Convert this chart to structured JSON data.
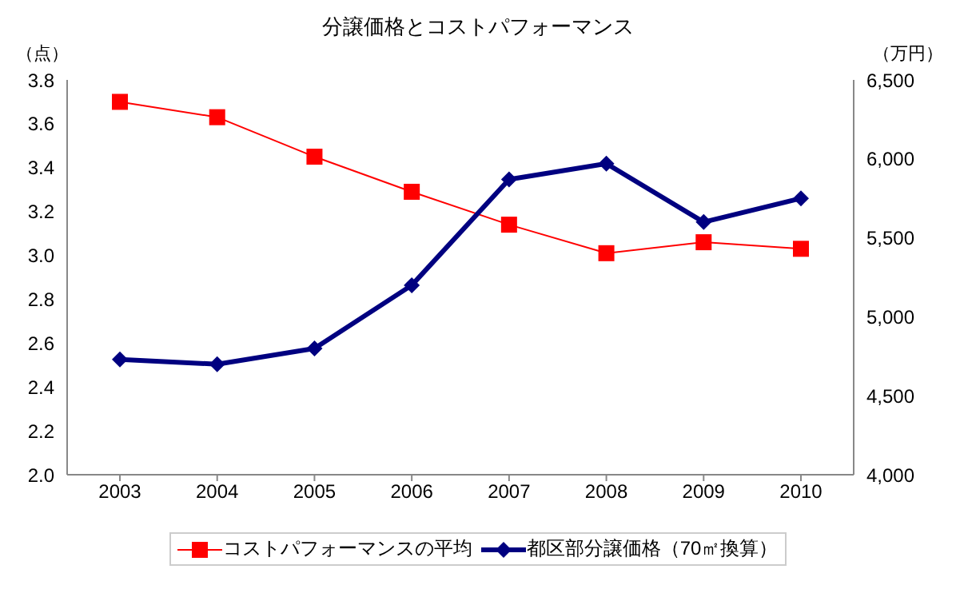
{
  "chart_data": {
    "type": "line",
    "title": "分譲価格とコストパフォーマンス",
    "ylabel": "（点）",
    "y2label": "（万円）",
    "categories": [
      "2003",
      "2004",
      "2005",
      "2006",
      "2007",
      "2008",
      "2009",
      "2010"
    ],
    "series": [
      {
        "name": "コストパフォーマンスの平均",
        "color": "#ff0000",
        "marker": "square",
        "values": [
          3.7,
          3.63,
          3.45,
          3.29,
          3.14,
          3.01,
          3.06,
          3.03
        ]
      },
      {
        "name": "都区部分譲価格（70㎡換算）",
        "color": "#000080",
        "marker": "diamond",
        "axis": "y2",
        "values": [
          4730,
          4700,
          4800,
          5200,
          5870,
          5970,
          5600,
          5750
        ]
      }
    ],
    "ylim": [
      2.0,
      3.8
    ],
    "yticks": [
      {
        "value": 2.0,
        "label": "2.0"
      },
      {
        "value": 2.2,
        "label": "2.2"
      },
      {
        "value": 2.4,
        "label": "2.4"
      },
      {
        "value": 2.6,
        "label": "2.6"
      },
      {
        "value": 2.8,
        "label": "2.8"
      },
      {
        "value": 3.0,
        "label": "3.0"
      },
      {
        "value": 3.2,
        "label": "3.2"
      },
      {
        "value": 3.4,
        "label": "3.4"
      },
      {
        "value": 3.6,
        "label": "3.6"
      },
      {
        "value": 3.8,
        "label": "3.8"
      }
    ],
    "y2lim": [
      4000,
      6500
    ],
    "y2ticks": [
      {
        "value": 4000,
        "label": "4,000"
      },
      {
        "value": 4500,
        "label": "4,500"
      },
      {
        "value": 5000,
        "label": "5,000"
      },
      {
        "value": 5500,
        "label": "5,500"
      },
      {
        "value": 6000,
        "label": "6,000"
      },
      {
        "value": 6500,
        "label": "6,500"
      }
    ],
    "legend": "bottom",
    "grid": false
  }
}
